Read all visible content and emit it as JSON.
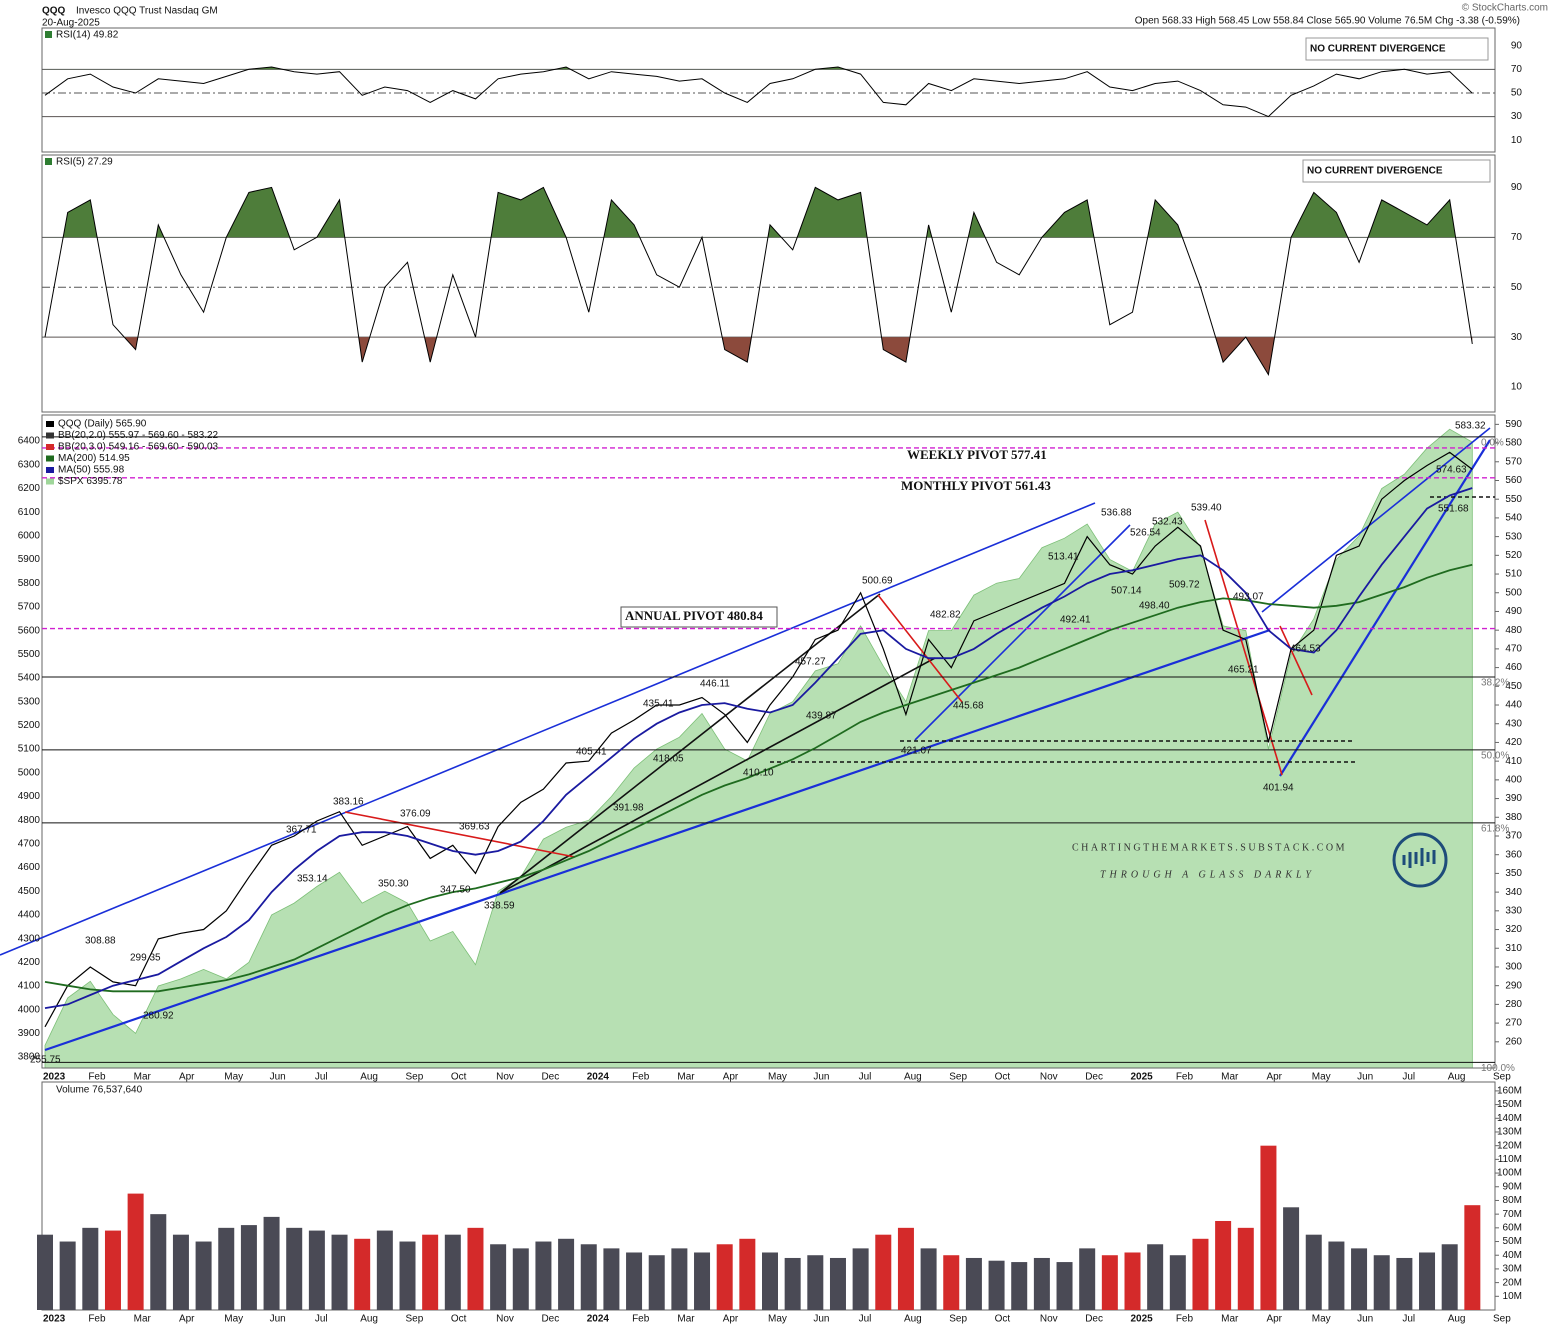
{
  "header": {
    "symbol": "QQQ",
    "name": "Invesco QQQ Trust Nasdaq GM",
    "date": "20-Aug-2025",
    "quote": "Open 568.33 High 568.45 Low 558.84 Close 565.90 Volume 76.5M Chg -3.38 (-0.59%)",
    "copyright": "© StockCharts.com",
    "site": "CHARTINGTHEMARKETS.SUBSTACK.COM",
    "tagline": "THROUGH A GLASS DARKLY"
  },
  "chart_data": [
    {
      "type": "line",
      "title": "RSI(14) 49.82",
      "color": "#000000",
      "fill_above": "#4e7d3a",
      "fill_below": "#8c4a3c",
      "values": [
        48,
        62,
        66,
        55,
        50,
        62,
        60,
        58,
        64,
        70,
        72,
        68,
        66,
        68,
        48,
        55,
        52,
        42,
        52,
        45,
        62,
        66,
        68,
        72,
        62,
        68,
        66,
        64,
        60,
        62,
        50,
        42,
        58,
        62,
        70,
        72,
        66,
        42,
        40,
        58,
        52,
        62,
        60,
        58,
        60,
        62,
        68,
        55,
        52,
        58,
        60,
        52,
        40,
        38,
        30,
        48,
        56,
        66,
        62,
        68,
        70,
        66,
        68,
        49.82,
        null
      ],
      "ylim": [
        0,
        105
      ],
      "yticks": [
        10,
        30,
        50,
        70,
        90
      ],
      "ref_lines": [
        30,
        50,
        70
      ],
      "annotations": [
        "NO CURRENT DIVERGENCE"
      ]
    },
    {
      "type": "line",
      "title": "RSI(5) 27.29",
      "color": "#000000",
      "fill_above": "#4e7d3a",
      "fill_below": "#8c4a3c",
      "values": [
        30,
        80,
        85,
        35,
        25,
        75,
        55,
        40,
        70,
        88,
        90,
        65,
        70,
        85,
        20,
        50,
        60,
        20,
        55,
        30,
        88,
        85,
        90,
        70,
        40,
        85,
        75,
        55,
        50,
        70,
        25,
        20,
        75,
        65,
        90,
        85,
        88,
        25,
        20,
        75,
        40,
        80,
        60,
        55,
        70,
        80,
        85,
        35,
        40,
        85,
        75,
        50,
        20,
        30,
        15,
        70,
        88,
        80,
        60,
        85,
        80,
        75,
        85,
        27.29,
        null
      ],
      "ylim": [
        0,
        103
      ],
      "yticks": [
        10,
        30,
        50,
        70,
        90
      ],
      "ref_lines": [
        30,
        50,
        70
      ],
      "annotations": [
        "NO CURRENT DIVERGENCE"
      ]
    },
    {
      "type": "line",
      "categories": [
        "2023",
        null,
        "Feb",
        null,
        "Mar",
        null,
        "Apr",
        null,
        "May",
        null,
        "Jun",
        null,
        "Jul",
        null,
        "Aug",
        null,
        "Sep",
        null,
        "Oct",
        null,
        "Nov",
        null,
        "Dec",
        null,
        "2024",
        null,
        "Feb",
        null,
        "Mar",
        null,
        "Apr",
        null,
        "May",
        null,
        "Jun",
        null,
        "Jul",
        null,
        "Aug",
        null,
        "Sep",
        null,
        "Oct",
        null,
        "Nov",
        null,
        "Dec",
        null,
        "2025",
        null,
        "Feb",
        null,
        "Mar",
        null,
        "Apr",
        null,
        "May",
        null,
        "Jun",
        null,
        "Jul",
        null,
        "Aug",
        null,
        "Sep"
      ],
      "series": [
        {
          "name": "QQQ (Daily) 565.90",
          "color": "#000000",
          "values": [
            268,
            290,
            300,
            292,
            290,
            315,
            318,
            320,
            330,
            348,
            365,
            370,
            378,
            383,
            365,
            370,
            375,
            358,
            365,
            350,
            375,
            388,
            395,
            409,
            410,
            425,
            432,
            440,
            440,
            444,
            435,
            420,
            440,
            455,
            475,
            480,
            500,
            470,
            435,
            475,
            460,
            485,
            490,
            495,
            500,
            505,
            530,
            515,
            510,
            525,
            535,
            525,
            480,
            475,
            420,
            470,
            480,
            520,
            525,
            550,
            560,
            568,
            575,
            565.9,
            null
          ]
        },
        {
          "name": "MA(200) 514.95",
          "color": "#1f6b1f",
          "values": [
            292,
            290,
            288,
            287,
            287,
            287,
            289,
            291,
            293,
            296,
            300,
            304,
            310,
            316,
            322,
            328,
            333,
            337,
            340,
            342,
            345,
            348,
            352,
            357,
            362,
            368,
            374,
            380,
            386,
            392,
            397,
            401,
            406,
            411,
            417,
            424,
            431,
            436,
            440,
            444,
            448,
            452,
            456,
            460,
            465,
            470,
            475,
            480,
            484,
            488,
            492,
            495,
            497,
            496,
            494,
            493,
            492,
            493,
            495,
            499,
            503,
            508,
            512,
            514.95,
            null
          ]
        },
        {
          "name": "MA(50) 555.98",
          "color": "#1a1aa0",
          "values": [
            278,
            280,
            285,
            290,
            293,
            296,
            303,
            310,
            316,
            325,
            340,
            352,
            362,
            370,
            372,
            372,
            370,
            366,
            362,
            360,
            362,
            367,
            378,
            392,
            402,
            412,
            422,
            430,
            436,
            440,
            441,
            438,
            436,
            440,
            452,
            465,
            478,
            480,
            470,
            465,
            465,
            470,
            478,
            485,
            492,
            498,
            505,
            510,
            512,
            515,
            518,
            520,
            512,
            500,
            480,
            470,
            468,
            480,
            498,
            515,
            530,
            545,
            552,
            555.98,
            null
          ]
        },
        {
          "name": "$SPX 6395.78",
          "color": "#9fd69a",
          "axis": "y2",
          "values": [
            3850,
            4050,
            4120,
            3980,
            3900,
            4100,
            4130,
            4170,
            4130,
            4200,
            4400,
            4450,
            4520,
            4580,
            4450,
            4500,
            4450,
            4290,
            4330,
            4190,
            4500,
            4560,
            4720,
            4770,
            4800,
            4900,
            5020,
            5100,
            5150,
            5250,
            5100,
            5050,
            5250,
            5300,
            5430,
            5460,
            5620,
            5450,
            5300,
            5600,
            5600,
            5750,
            5800,
            5820,
            5950,
            5990,
            6050,
            5900,
            5850,
            6050,
            6100,
            5950,
            5620,
            5600,
            5100,
            5500,
            5650,
            5900,
            6000,
            6200,
            6260,
            6370,
            6450,
            6395.78,
            null
          ]
        }
      ],
      "indicator_labels": [
        "BB(20,2.0) 555.97 - 569.60 - 583.22",
        "BB(20,3.0) 549.16 - 569.60 - 590.03"
      ],
      "ylim": [
        246,
        595
      ],
      "yticks": [
        260,
        270,
        280,
        290,
        300,
        310,
        320,
        330,
        340,
        350,
        360,
        370,
        380,
        390,
        400,
        410,
        420,
        430,
        440,
        450,
        460,
        470,
        480,
        490,
        500,
        510,
        520,
        530,
        540,
        550,
        560,
        570,
        580,
        590
      ],
      "y2lim": [
        3754,
        6510
      ],
      "y2ticks": [
        3800,
        3900,
        4000,
        4100,
        4200,
        4300,
        4400,
        4500,
        4600,
        4700,
        4800,
        4900,
        5000,
        5100,
        5200,
        5300,
        5400,
        5500,
        5600,
        5700,
        5800,
        5900,
        6000,
        6100,
        6200,
        6300,
        6400
      ],
      "pivots": [
        {
          "label": "WEEKLY PIVOT 577.41",
          "value": 577.41
        },
        {
          "label": "MONTHLY PIVOT 561.43",
          "value": 561.43
        },
        {
          "label": "ANNUAL PIVOT 480.84",
          "value": 480.84
        }
      ],
      "pivot_color": "#d020d0",
      "fib_levels": [
        {
          "label": "0.0%",
          "price": 583.32
        },
        {
          "label": "38.2%",
          "price": 455
        },
        {
          "label": "50.0%",
          "price": 416
        },
        {
          "label": "61.8%",
          "price": 377
        },
        {
          "label": "100.0%",
          "price": 249
        }
      ],
      "annotations": [
        "255.75",
        "280.92",
        "299.35",
        "308.88",
        "353.14",
        "367.71",
        "383.16",
        "376.09",
        "369.63",
        "350.30",
        "347.50",
        "338.59",
        "391.98",
        "405.41",
        "418.05",
        "435.41",
        "446.11",
        "410.10",
        "439.87",
        "457.27",
        "500.69",
        "482.82",
        "445.68",
        "421.07",
        "513.41",
        "492.41",
        "536.88",
        "526.54",
        "532.43",
        "539.40",
        "507.14",
        "498.40",
        "509.72",
        "493.07",
        "465.21",
        "464.53",
        "401.94",
        "583.32",
        "574.63",
        "551.68"
      ]
    },
    {
      "type": "bar",
      "title": "Volume 76,537,640",
      "up_color": "#4a4a55",
      "down_color": "#d42a2a",
      "categories": [
        "2023",
        null,
        "Feb",
        null,
        "Mar",
        null,
        "Apr",
        null,
        "May",
        null,
        "Jun",
        null,
        "Jul",
        null,
        "Aug",
        null,
        "Sep",
        null,
        "Oct",
        null,
        "Nov",
        null,
        "Dec",
        null,
        "2024",
        null,
        "Feb",
        null,
        "Mar",
        null,
        "Apr",
        null,
        "May",
        null,
        "Jun",
        null,
        "Jul",
        null,
        "Aug",
        null,
        "Sep",
        null,
        "Oct",
        null,
        "Nov",
        null,
        "Dec",
        null,
        "2025",
        null,
        "Feb",
        null,
        "Mar",
        null,
        "Apr",
        null,
        "May",
        null,
        "Jun",
        null,
        "Jul",
        null,
        "Aug",
        null,
        "Sep"
      ],
      "values": [
        55000000,
        50000000,
        60000000,
        58000000,
        85000000,
        70000000,
        55000000,
        50000000,
        60000000,
        62000000,
        68000000,
        60000000,
        58000000,
        55000000,
        52000000,
        58000000,
        50000000,
        55000000,
        55000000,
        60000000,
        48000000,
        45000000,
        50000000,
        52000000,
        48000000,
        45000000,
        42000000,
        40000000,
        45000000,
        42000000,
        48000000,
        52000000,
        42000000,
        38000000,
        40000000,
        38000000,
        45000000,
        55000000,
        60000000,
        45000000,
        40000000,
        38000000,
        36000000,
        35000000,
        38000000,
        35000000,
        45000000,
        40000000,
        42000000,
        48000000,
        40000000,
        52000000,
        65000000,
        60000000,
        120000000,
        75000000,
        55000000,
        50000000,
        45000000,
        40000000,
        38000000,
        42000000,
        48000000,
        76537640,
        null
      ],
      "ylim": [
        0,
        166500000
      ],
      "yticks": [
        {
          "value": 10000000,
          "label": "10M"
        },
        {
          "value": 20000000,
          "label": "20M"
        },
        {
          "value": 30000000,
          "label": "30M"
        },
        {
          "value": 40000000,
          "label": "40M"
        },
        {
          "value": 50000000,
          "label": "50M"
        },
        {
          "value": 60000000,
          "label": "60M"
        },
        {
          "value": 70000000,
          "label": "70M"
        },
        {
          "value": 80000000,
          "label": "80M"
        },
        {
          "value": 90000000,
          "label": "90M"
        },
        {
          "value": 100000000,
          "label": "100M"
        },
        {
          "value": 110000000,
          "label": "110M"
        },
        {
          "value": 120000000,
          "label": "120M"
        },
        {
          "value": 130000000,
          "label": "130M"
        },
        {
          "value": 140000000,
          "label": "140M"
        },
        {
          "value": 150000000,
          "label": "150M"
        },
        {
          "value": 160000000,
          "label": "160M"
        }
      ]
    }
  ]
}
